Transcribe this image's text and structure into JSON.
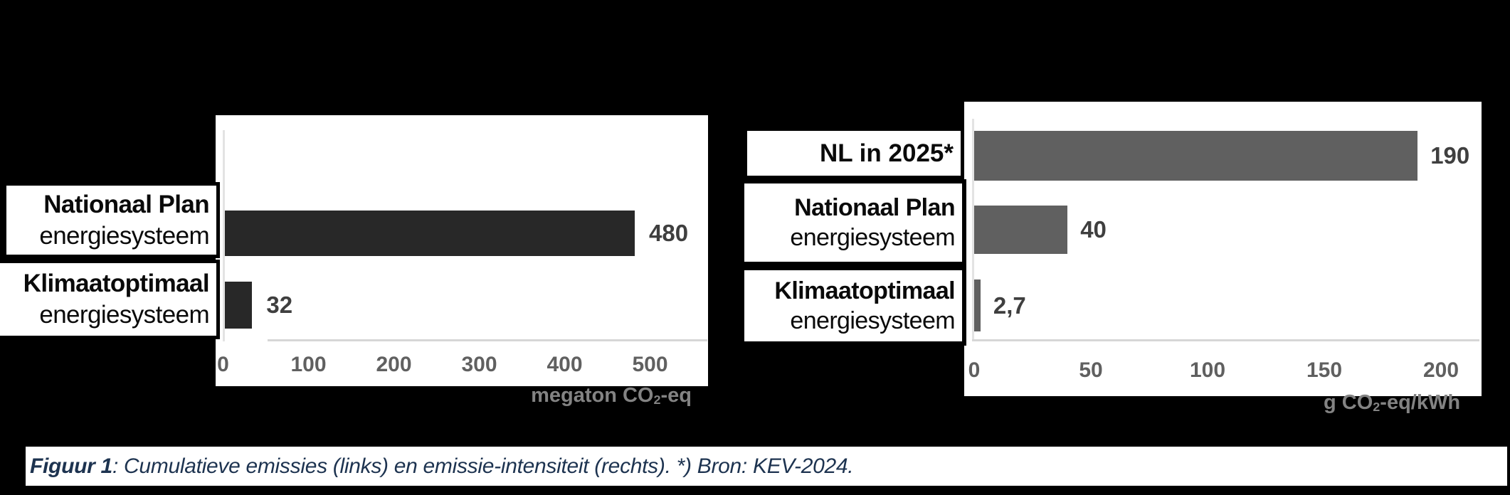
{
  "caption": {
    "lead": "Figuur 1",
    "rest": ": Cumulatieve emissies (links) en emissie-intensiteit (rechts). *) Bron: KEV-2024.",
    "color": "#1d3350"
  },
  "chart_data": [
    {
      "type": "bar",
      "orientation": "horizontal",
      "title": "",
      "categories": [
        [
          "Nationaal Plan",
          "energiesysteem"
        ],
        [
          "Klimaatoptimaal",
          "energiesysteem"
        ]
      ],
      "values": [
        480,
        32
      ],
      "value_labels": [
        "480",
        "32"
      ],
      "xlabel": {
        "prefix": "megaton CO",
        "sub": "2",
        "suffix": "-eq"
      },
      "xlabel_text": "megaton CO2-eq",
      "xlim": [
        0,
        560
      ],
      "xticks": [
        0,
        100,
        200,
        300,
        400,
        500
      ],
      "bar_color": "#282828",
      "grid": false,
      "legend": "none"
    },
    {
      "type": "bar",
      "orientation": "horizontal",
      "title": "",
      "categories": [
        [
          "NL in 2025*"
        ],
        [
          "Nationaal Plan",
          "energiesysteem"
        ],
        [
          "Klimaatoptimaal",
          "energiesysteem"
        ]
      ],
      "values": [
        190,
        40,
        2.7
      ],
      "value_labels": [
        "190",
        "40",
        "2,7"
      ],
      "xlabel": {
        "prefix": "g CO",
        "sub": "2",
        "suffix": "-eq/kWh"
      },
      "xlabel_text": "g CO2-eq/kWh",
      "xlim": [
        0,
        215
      ],
      "xticks": [
        0,
        50,
        100,
        150,
        200
      ],
      "bar_color": "#606060",
      "grid": false,
      "legend": "none"
    }
  ]
}
